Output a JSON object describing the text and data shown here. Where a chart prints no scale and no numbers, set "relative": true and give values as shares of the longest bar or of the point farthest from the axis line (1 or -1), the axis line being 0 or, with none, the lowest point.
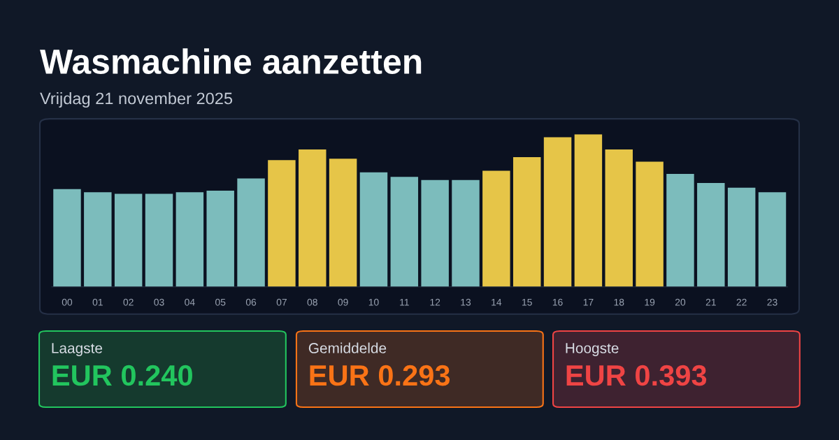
{
  "chart_data": {
    "type": "bar",
    "title": "Wasmachine aanzetten",
    "subtitle": "Vrijdag 21 november 2025",
    "categories": [
      "00",
      "01",
      "02",
      "03",
      "04",
      "05",
      "06",
      "07",
      "08",
      "09",
      "10",
      "11",
      "12",
      "13",
      "14",
      "15",
      "16",
      "17",
      "18",
      "19",
      "20",
      "21",
      "22",
      "23"
    ],
    "values": [
      0.64,
      0.62,
      0.61,
      0.61,
      0.62,
      0.63,
      0.71,
      0.83,
      0.9,
      0.84,
      0.75,
      0.72,
      0.7,
      0.7,
      0.76,
      0.85,
      0.98,
      1,
      0.9,
      0.82,
      0.74,
      0.68,
      0.65,
      0.62
    ],
    "colors": [
      "#7cbcbc",
      "#7cbcbc",
      "#7cbcbc",
      "#7cbcbc",
      "#7cbcbc",
      "#7cbcbc",
      "#7cbcbc",
      "#e6c548",
      "#e6c548",
      "#e6c548",
      "#7cbcbc",
      "#7cbcbc",
      "#7cbcbc",
      "#7cbcbc",
      "#e6c548",
      "#e6c548",
      "#e6c548",
      "#e6c548",
      "#e6c548",
      "#e6c548",
      "#7cbcbc",
      "#7cbcbc",
      "#7cbcbc",
      "#7cbcbc"
    ],
    "relative": true,
    "annotations": [
      "Laagste",
      "EUR 0.240",
      "Gemiddelde",
      "EUR 0.293",
      "Hoogste",
      "EUR 0.393"
    ]
  }
}
